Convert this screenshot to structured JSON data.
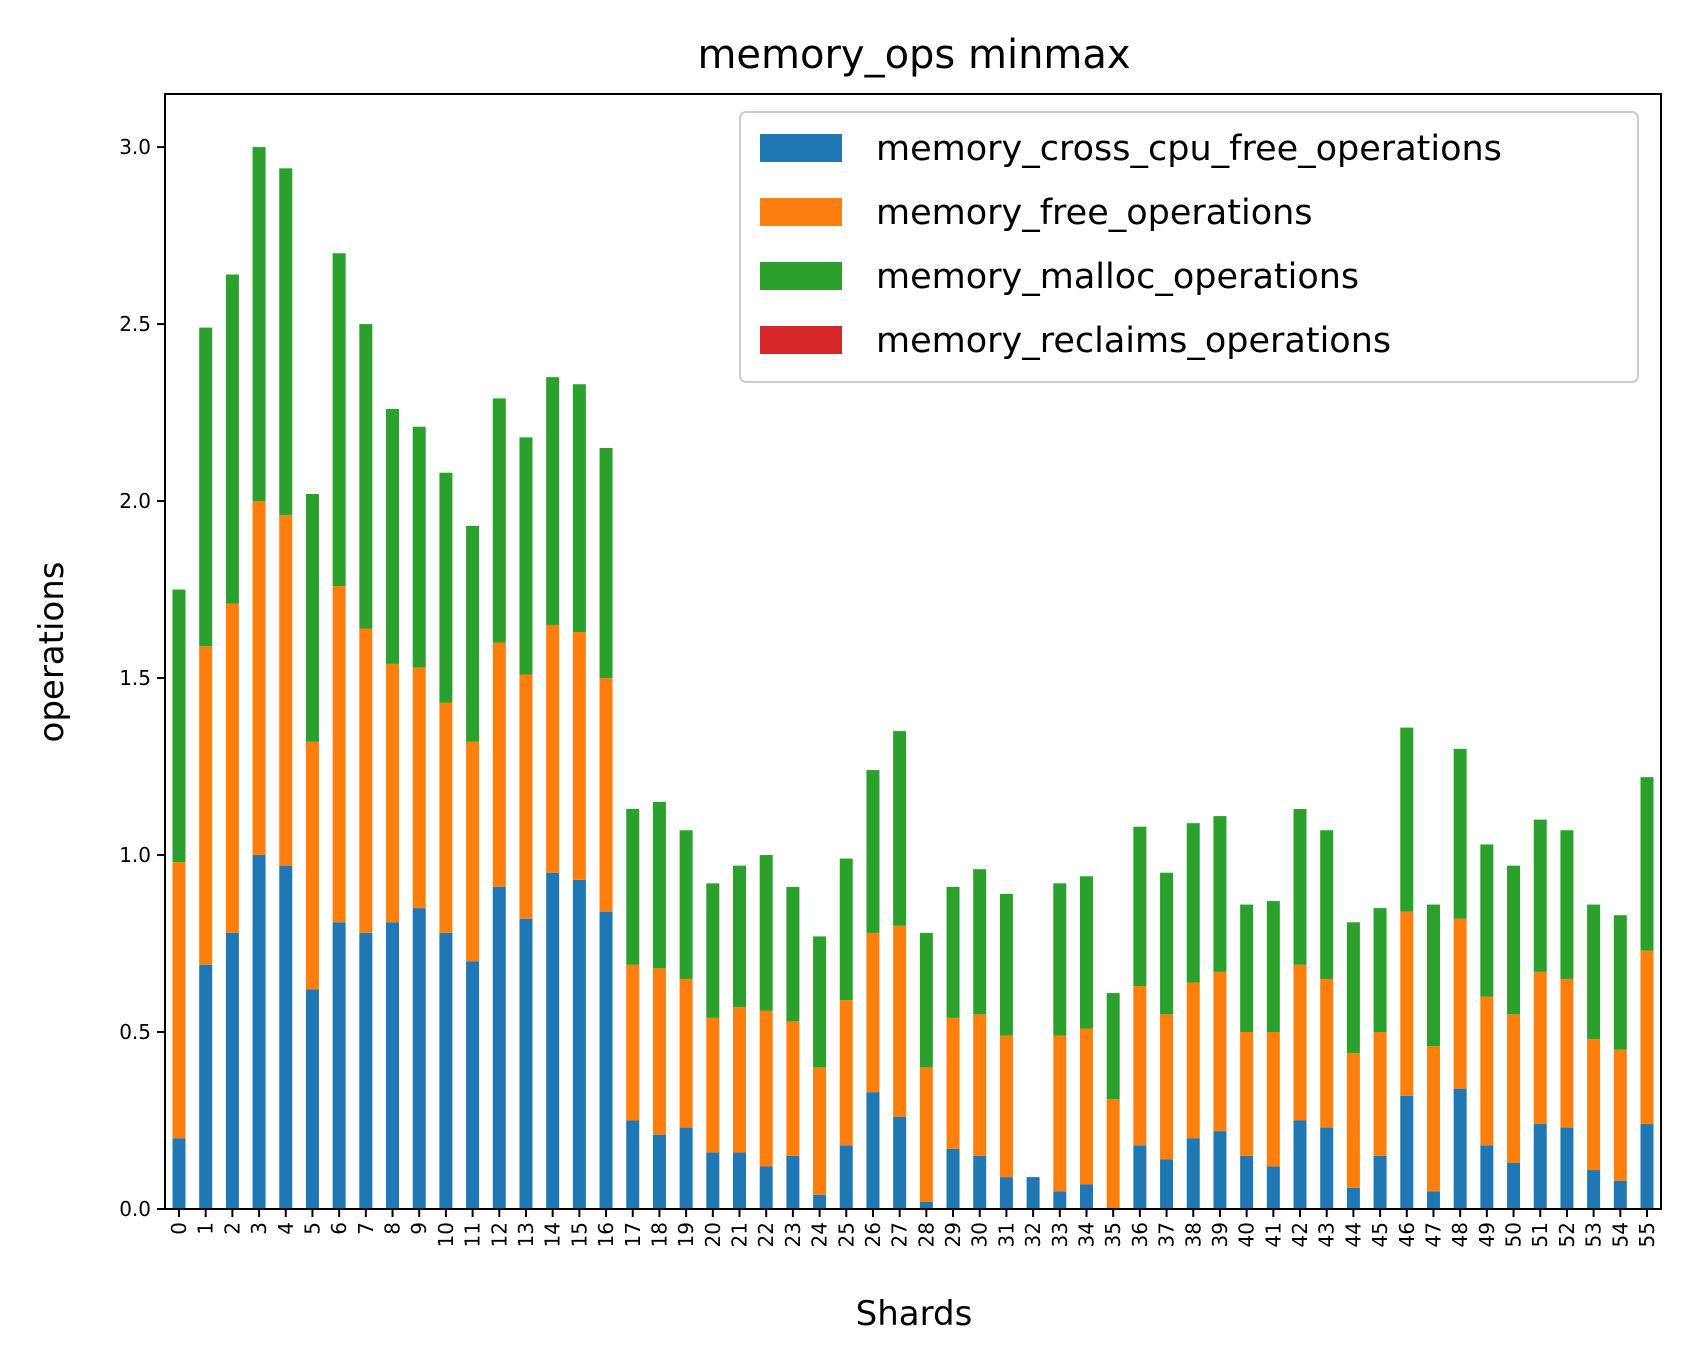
{
  "chart_data": {
    "type": "bar",
    "stacked": true,
    "title": "memory_ops minmax",
    "xlabel": "Shards",
    "ylabel": "operations",
    "ylim": [
      0,
      3.15
    ],
    "yticks": [
      "0.0",
      "0.5",
      "1.0",
      "1.5",
      "2.0",
      "2.5",
      "3.0"
    ],
    "ytick_values": [
      0,
      0.5,
      1.0,
      1.5,
      2.0,
      2.5,
      3.0
    ],
    "grid": false,
    "legend_position": "top-right",
    "categories": [
      "0",
      "1",
      "2",
      "3",
      "4",
      "5",
      "6",
      "7",
      "8",
      "9",
      "10",
      "11",
      "12",
      "13",
      "14",
      "15",
      "16",
      "17",
      "18",
      "19",
      "20",
      "21",
      "22",
      "23",
      "24",
      "25",
      "26",
      "27",
      "28",
      "29",
      "30",
      "31",
      "32",
      "33",
      "34",
      "35",
      "36",
      "37",
      "38",
      "39",
      "40",
      "41",
      "42",
      "43",
      "44",
      "45",
      "46",
      "47",
      "48",
      "49",
      "50",
      "51",
      "52",
      "53",
      "54",
      "55"
    ],
    "series": [
      {
        "name": "memory_cross_cpu_free_operations",
        "color": "#1f77b4",
        "values": [
          0.2,
          0.69,
          0.78,
          1.0,
          0.97,
          0.62,
          0.81,
          0.78,
          0.81,
          0.85,
          0.78,
          0.7,
          0.91,
          0.82,
          0.95,
          0.93,
          0.84,
          0.25,
          0.21,
          0.23,
          0.16,
          0.16,
          0.12,
          0.15,
          0.04,
          0.18,
          0.33,
          0.26,
          0.02,
          0.17,
          0.15,
          0.09,
          0.09,
          0.05,
          0.07,
          0.0,
          0.18,
          0.14,
          0.2,
          0.22,
          0.15,
          0.12,
          0.25,
          0.23,
          0.06,
          0.15,
          0.32,
          0.05,
          0.34,
          0.18,
          0.13,
          0.24,
          0.23,
          0.11,
          0.08,
          0.24
        ]
      },
      {
        "name": "memory_free_operations",
        "color": "#ff7f0e",
        "values": [
          0.78,
          0.9,
          0.93,
          1.0,
          0.99,
          0.7,
          0.95,
          0.86,
          0.73,
          0.68,
          0.65,
          0.62,
          0.69,
          0.69,
          0.7,
          0.7,
          0.66,
          0.44,
          0.47,
          0.42,
          0.38,
          0.41,
          0.44,
          0.38,
          0.36,
          0.41,
          0.45,
          0.54,
          0.38,
          0.37,
          0.4,
          0.4,
          0.0,
          0.44,
          0.44,
          0.31,
          0.45,
          0.41,
          0.44,
          0.45,
          0.35,
          0.38,
          0.44,
          0.42,
          0.38,
          0.35,
          0.52,
          0.41,
          0.48,
          0.42,
          0.42,
          0.43,
          0.42,
          0.37,
          0.37,
          0.49
        ]
      },
      {
        "name": "memory_malloc_operations",
        "color": "#2ca02c",
        "values": [
          0.77,
          0.9,
          0.93,
          1.0,
          0.98,
          0.7,
          0.94,
          0.86,
          0.72,
          0.68,
          0.65,
          0.61,
          0.69,
          0.67,
          0.7,
          0.7,
          0.65,
          0.44,
          0.47,
          0.42,
          0.38,
          0.4,
          0.44,
          0.38,
          0.37,
          0.4,
          0.46,
          0.55,
          0.38,
          0.37,
          0.41,
          0.4,
          0.0,
          0.43,
          0.43,
          0.3,
          0.45,
          0.4,
          0.45,
          0.44,
          0.36,
          0.37,
          0.44,
          0.42,
          0.37,
          0.35,
          0.52,
          0.4,
          0.48,
          0.43,
          0.42,
          0.43,
          0.42,
          0.38,
          0.38,
          0.49
        ]
      },
      {
        "name": "memory_reclaims_operations",
        "color": "#d62728",
        "values": [
          0,
          0,
          0,
          0,
          0,
          0,
          0,
          0,
          0,
          0,
          0,
          0,
          0,
          0,
          0,
          0,
          0,
          0,
          0,
          0,
          0,
          0,
          0,
          0,
          0,
          0,
          0,
          0,
          0,
          0,
          0,
          0,
          0,
          0,
          0,
          0,
          0,
          0,
          0,
          0,
          0,
          0,
          0,
          0,
          0,
          0,
          0,
          0,
          0,
          0,
          0,
          0,
          0,
          0,
          0,
          0
        ]
      }
    ]
  }
}
